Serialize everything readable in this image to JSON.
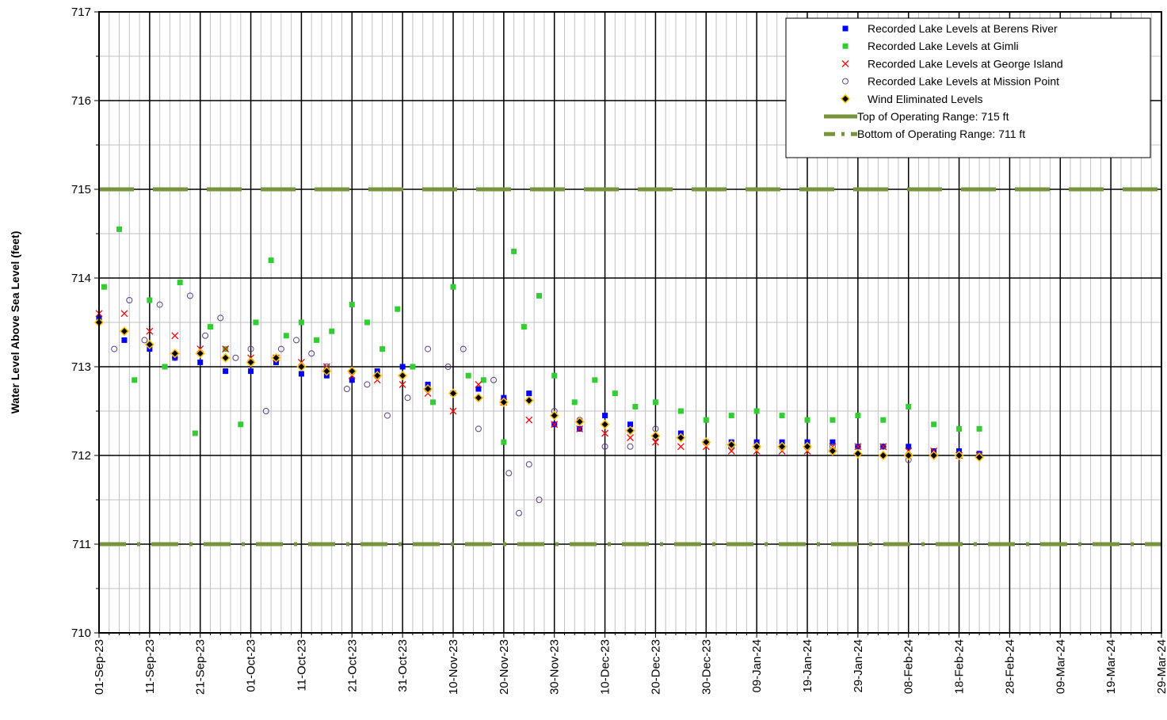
{
  "chart_data": {
    "type": "scatter",
    "title": "",
    "xlabel": "",
    "ylabel": "Water Level Above Sea Level (feet)",
    "ylim": [
      710,
      717
    ],
    "xlim": [
      "2023-09-01",
      "2024-03-29"
    ],
    "y_ticks": [
      "710",
      "711",
      "712",
      "713",
      "714",
      "715",
      "716",
      "717"
    ],
    "x_tick_labels": [
      "01-Sep-23",
      "11-Sep-23",
      "21-Sep-23",
      "01-Oct-23",
      "11-Oct-23",
      "21-Oct-23",
      "31-Oct-23",
      "10-Nov-23",
      "20-Nov-23",
      "30-Nov-23",
      "10-Dec-23",
      "20-Dec-23",
      "30-Dec-23",
      "09-Jan-24",
      "19-Jan-24",
      "29-Jan-24",
      "08-Feb-24",
      "18-Feb-24",
      "28-Feb-24",
      "09-Mar-24",
      "19-Mar-24",
      "29-Mar-24"
    ],
    "grid": true,
    "legend_position": "top-right",
    "reference_lines": [
      {
        "name": "Top of Operating Range: 715 ft",
        "y": 715,
        "color": "#77933c",
        "style": "long-dash"
      },
      {
        "name": "Bottom of Operating Range: 711 ft",
        "y": 711,
        "color": "#77933c",
        "style": "dash-dot"
      }
    ],
    "series": [
      {
        "name": "Recorded Lake Levels at Berens River",
        "color": "#0000ff",
        "marker": "square",
        "x": [
          "2023-09-01",
          "2023-09-06",
          "2023-09-11",
          "2023-09-16",
          "2023-09-21",
          "2023-09-26",
          "2023-10-01",
          "2023-10-06",
          "2023-10-11",
          "2023-10-16",
          "2023-10-21",
          "2023-10-26",
          "2023-10-31",
          "2023-11-05",
          "2023-11-10",
          "2023-11-15",
          "2023-11-20",
          "2023-11-25",
          "2023-11-30",
          "2023-12-05",
          "2023-12-10",
          "2023-12-15",
          "2023-12-20",
          "2023-12-25",
          "2023-12-30",
          "2024-01-04",
          "2024-01-09",
          "2024-01-14",
          "2024-01-19",
          "2024-01-24",
          "2024-01-29",
          "2024-02-03",
          "2024-02-08",
          "2024-02-13",
          "2024-02-18",
          "2024-02-22"
        ],
        "y": [
          713.55,
          713.3,
          713.2,
          713.1,
          713.05,
          712.95,
          712.95,
          713.05,
          712.92,
          712.9,
          712.85,
          712.95,
          713.0,
          712.8,
          712.7,
          712.75,
          712.65,
          712.7,
          712.35,
          712.3,
          712.45,
          712.35,
          712.2,
          712.25,
          712.15,
          712.15,
          712.15,
          712.15,
          712.15,
          712.15,
          712.1,
          712.1,
          712.1,
          712.05,
          712.05,
          712.02
        ]
      },
      {
        "name": "Recorded Lake Levels at Gimli",
        "color": "#33cc33",
        "marker": "square",
        "x": [
          "2023-09-02",
          "2023-09-05",
          "2023-09-08",
          "2023-09-11",
          "2023-09-14",
          "2023-09-17",
          "2023-09-20",
          "2023-09-23",
          "2023-09-26",
          "2023-09-29",
          "2023-10-02",
          "2023-10-05",
          "2023-10-08",
          "2023-10-11",
          "2023-10-14",
          "2023-10-17",
          "2023-10-21",
          "2023-10-24",
          "2023-10-27",
          "2023-10-30",
          "2023-11-02",
          "2023-11-06",
          "2023-11-10",
          "2023-11-13",
          "2023-11-16",
          "2023-11-20",
          "2023-11-22",
          "2023-11-24",
          "2023-11-27",
          "2023-11-30",
          "2023-12-04",
          "2023-12-08",
          "2023-12-12",
          "2023-12-16",
          "2023-12-20",
          "2023-12-25",
          "2023-12-30",
          "2024-01-04",
          "2024-01-09",
          "2024-01-14",
          "2024-01-19",
          "2024-01-24",
          "2024-01-29",
          "2024-02-03",
          "2024-02-08",
          "2024-02-13",
          "2024-02-18",
          "2024-02-22"
        ],
        "y": [
          713.9,
          714.55,
          712.85,
          713.75,
          713.0,
          713.95,
          712.25,
          713.45,
          713.2,
          712.35,
          713.5,
          714.2,
          713.35,
          713.5,
          713.3,
          713.4,
          713.7,
          713.5,
          713.2,
          713.65,
          713.0,
          712.6,
          713.9,
          712.9,
          712.85,
          712.15,
          714.3,
          713.45,
          713.8,
          712.9,
          712.6,
          712.85,
          712.7,
          712.55,
          712.6,
          712.5,
          712.4,
          712.45,
          712.5,
          712.45,
          712.4,
          712.4,
          712.45,
          712.4,
          712.55,
          712.35,
          712.3,
          712.3
        ]
      },
      {
        "name": "Recorded Lake Levels at George Island",
        "color": "#ff0000",
        "marker": "x",
        "x": [
          "2023-09-01",
          "2023-09-06",
          "2023-09-11",
          "2023-09-16",
          "2023-09-21",
          "2023-09-26",
          "2023-10-01",
          "2023-10-06",
          "2023-10-11",
          "2023-10-16",
          "2023-10-21",
          "2023-10-26",
          "2023-10-31",
          "2023-11-05",
          "2023-11-10",
          "2023-11-15",
          "2023-11-20",
          "2023-11-25",
          "2023-11-30",
          "2023-12-05",
          "2023-12-10",
          "2023-12-15",
          "2023-12-20",
          "2023-12-25",
          "2023-12-30",
          "2024-01-04",
          "2024-01-09",
          "2024-01-14",
          "2024-01-19",
          "2024-01-24",
          "2024-01-29",
          "2024-02-03",
          "2024-02-08",
          "2024-02-13",
          "2024-02-18",
          "2024-02-22"
        ],
        "y": [
          713.6,
          713.6,
          713.4,
          713.35,
          713.2,
          713.2,
          713.1,
          713.1,
          713.05,
          713.0,
          712.9,
          712.85,
          712.8,
          712.7,
          712.5,
          712.8,
          712.6,
          712.4,
          712.35,
          712.3,
          712.25,
          712.2,
          712.15,
          712.1,
          712.1,
          712.05,
          712.05,
          712.05,
          712.05,
          712.1,
          712.1,
          712.1,
          712.05,
          712.05,
          712.0,
          712.0
        ]
      },
      {
        "name": "Recorded Lake Levels at Mission Point",
        "color": "#5b3f86",
        "marker": "circle",
        "x": [
          "2023-09-01",
          "2023-09-04",
          "2023-09-07",
          "2023-09-10",
          "2023-09-13",
          "2023-09-16",
          "2023-09-19",
          "2023-09-22",
          "2023-09-25",
          "2023-09-28",
          "2023-10-01",
          "2023-10-04",
          "2023-10-07",
          "2023-10-10",
          "2023-10-13",
          "2023-10-16",
          "2023-10-20",
          "2023-10-24",
          "2023-10-28",
          "2023-11-01",
          "2023-11-05",
          "2023-11-09",
          "2023-11-12",
          "2023-11-15",
          "2023-11-18",
          "2023-11-21",
          "2023-11-23",
          "2023-11-25",
          "2023-11-27",
          "2023-11-30",
          "2023-12-05",
          "2023-12-10",
          "2023-12-15",
          "2023-12-20",
          "2023-12-25",
          "2023-12-30",
          "2024-01-04",
          "2024-01-09",
          "2024-01-14",
          "2024-01-19",
          "2024-01-24",
          "2024-01-29",
          "2024-02-03",
          "2024-02-08",
          "2024-02-13",
          "2024-02-18",
          "2024-02-22"
        ],
        "y": [
          713.5,
          713.2,
          713.75,
          713.3,
          713.7,
          713.1,
          713.8,
          713.35,
          713.55,
          713.1,
          713.2,
          712.5,
          713.2,
          713.3,
          713.15,
          713.0,
          712.75,
          712.8,
          712.45,
          712.65,
          713.2,
          713.0,
          713.2,
          712.3,
          712.85,
          711.8,
          711.35,
          711.9,
          711.5,
          712.5,
          712.4,
          712.1,
          712.1,
          712.3,
          712.2,
          712.15,
          712.1,
          712.1,
          712.1,
          712.1,
          712.1,
          712.1,
          712.1,
          711.95,
          712.0,
          712.0,
          712.0
        ]
      },
      {
        "name": "Wind Eliminated Levels",
        "color": "#ffc000",
        "marker": "diamond",
        "x": [
          "2023-09-01",
          "2023-09-06",
          "2023-09-11",
          "2023-09-16",
          "2023-09-21",
          "2023-09-26",
          "2023-10-01",
          "2023-10-06",
          "2023-10-11",
          "2023-10-16",
          "2023-10-21",
          "2023-10-26",
          "2023-10-31",
          "2023-11-05",
          "2023-11-10",
          "2023-11-15",
          "2023-11-20",
          "2023-11-25",
          "2023-11-30",
          "2023-12-05",
          "2023-12-10",
          "2023-12-15",
          "2023-12-20",
          "2023-12-25",
          "2023-12-30",
          "2024-01-04",
          "2024-01-09",
          "2024-01-14",
          "2024-01-19",
          "2024-01-24",
          "2024-01-29",
          "2024-02-03",
          "2024-02-08",
          "2024-02-13",
          "2024-02-18",
          "2024-02-22"
        ],
        "y": [
          713.5,
          713.4,
          713.25,
          713.15,
          713.15,
          713.1,
          713.05,
          713.1,
          713.0,
          712.95,
          712.95,
          712.9,
          712.9,
          712.75,
          712.7,
          712.65,
          712.6,
          712.62,
          712.45,
          712.38,
          712.35,
          712.28,
          712.22,
          712.2,
          712.15,
          712.12,
          712.1,
          712.1,
          712.1,
          712.05,
          712.02,
          712.0,
          712.0,
          712.0,
          712.0,
          711.98
        ]
      }
    ]
  }
}
